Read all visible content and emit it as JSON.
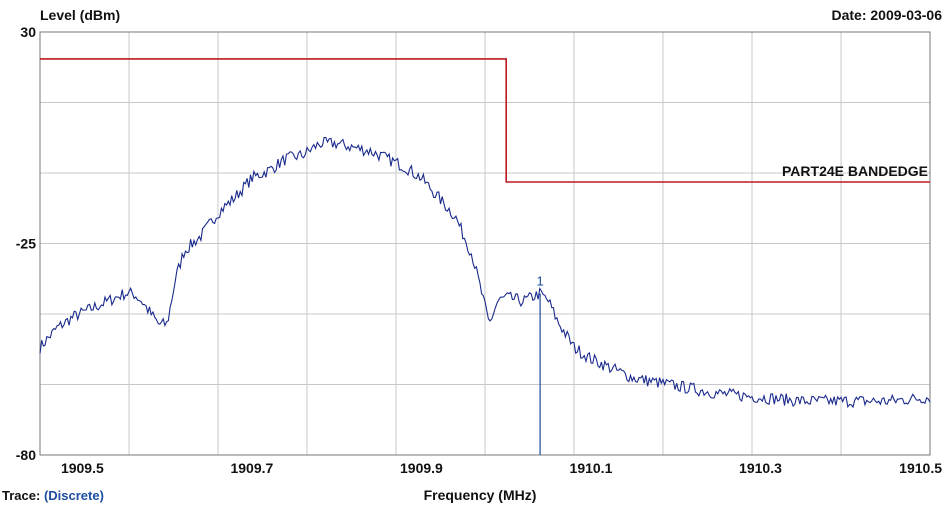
{
  "page": {
    "date_label": "Date: 2009-03-06",
    "trace_label": "Trace:",
    "trace_mode": "(Discrete)"
  },
  "colors": {
    "background": "#ffffff",
    "grid": "#c8c8c8",
    "trace": "#1a2a8c",
    "limit": "#c0181e",
    "limit_label": "#c0181e",
    "marker": "#1a4a9a"
  },
  "chart_data": {
    "type": "line",
    "xlabel": "Frequency (MHz)",
    "ylabel": "Level (dBm)",
    "xlim": [
      1909.45,
      1910.5
    ],
    "ylim": [
      -80,
      30
    ],
    "x_ticks": [
      1909.5,
      1909.7,
      1909.9,
      1910.1,
      1910.3,
      1910.5
    ],
    "x_tick_labels": [
      "1909.5",
      "1909.7",
      "1909.9",
      "1910.1",
      "1910.3",
      "1910.5"
    ],
    "y_ticks": [
      30,
      -25,
      -80
    ],
    "y_tick_labels": [
      "30",
      "-25",
      "-80"
    ],
    "grid": true,
    "series": [
      {
        "x": [
          1909.45,
          1909.47,
          1909.49,
          1909.51,
          1909.53,
          1909.55,
          1909.56,
          1909.57,
          1909.58,
          1909.59,
          1909.6,
          1909.61,
          1909.62,
          1909.64,
          1909.66,
          1909.68,
          1909.7,
          1909.72,
          1909.74,
          1909.76,
          1909.78,
          1909.8,
          1909.82,
          1909.84,
          1909.86,
          1909.88,
          1909.9,
          1909.92,
          1909.94,
          1909.96,
          1909.97,
          1909.98,
          1909.99,
          1910.0,
          1910.02,
          1910.04,
          1910.05,
          1910.06,
          1910.08,
          1910.1,
          1910.12,
          1910.15,
          1910.2,
          1910.25,
          1910.3,
          1910.35,
          1910.4,
          1910.45,
          1910.5
        ],
        "y": [
          -52,
          -47,
          -44,
          -42,
          -40,
          -38,
          -38,
          -40,
          -43,
          -46,
          -46,
          -34,
          -27,
          -23,
          -17,
          -13,
          -8,
          -6,
          -3,
          -2,
          1,
          1,
          0,
          -1,
          -3,
          -5,
          -8,
          -13,
          -18,
          -28,
          -37,
          -46,
          -40,
          -39,
          -40,
          -38,
          -40,
          -45,
          -52,
          -55,
          -57,
          -60,
          -62,
          -64,
          -65,
          -66,
          -66,
          -66,
          -65
        ]
      },
      {
        "x": [
          1909.45,
          1910.0,
          1910.0,
          1910.5
        ],
        "y": [
          23,
          23,
          -9,
          -9
        ]
      }
    ],
    "annotations": [
      {
        "text": "PART24E BANDEDGE",
        "x": 1910.5,
        "y": -9,
        "align": "right"
      },
      {
        "text": "1",
        "x": 1910.04,
        "y": -38
      }
    ],
    "marker": {
      "label": "1",
      "x": 1910.04,
      "y": -38
    }
  }
}
